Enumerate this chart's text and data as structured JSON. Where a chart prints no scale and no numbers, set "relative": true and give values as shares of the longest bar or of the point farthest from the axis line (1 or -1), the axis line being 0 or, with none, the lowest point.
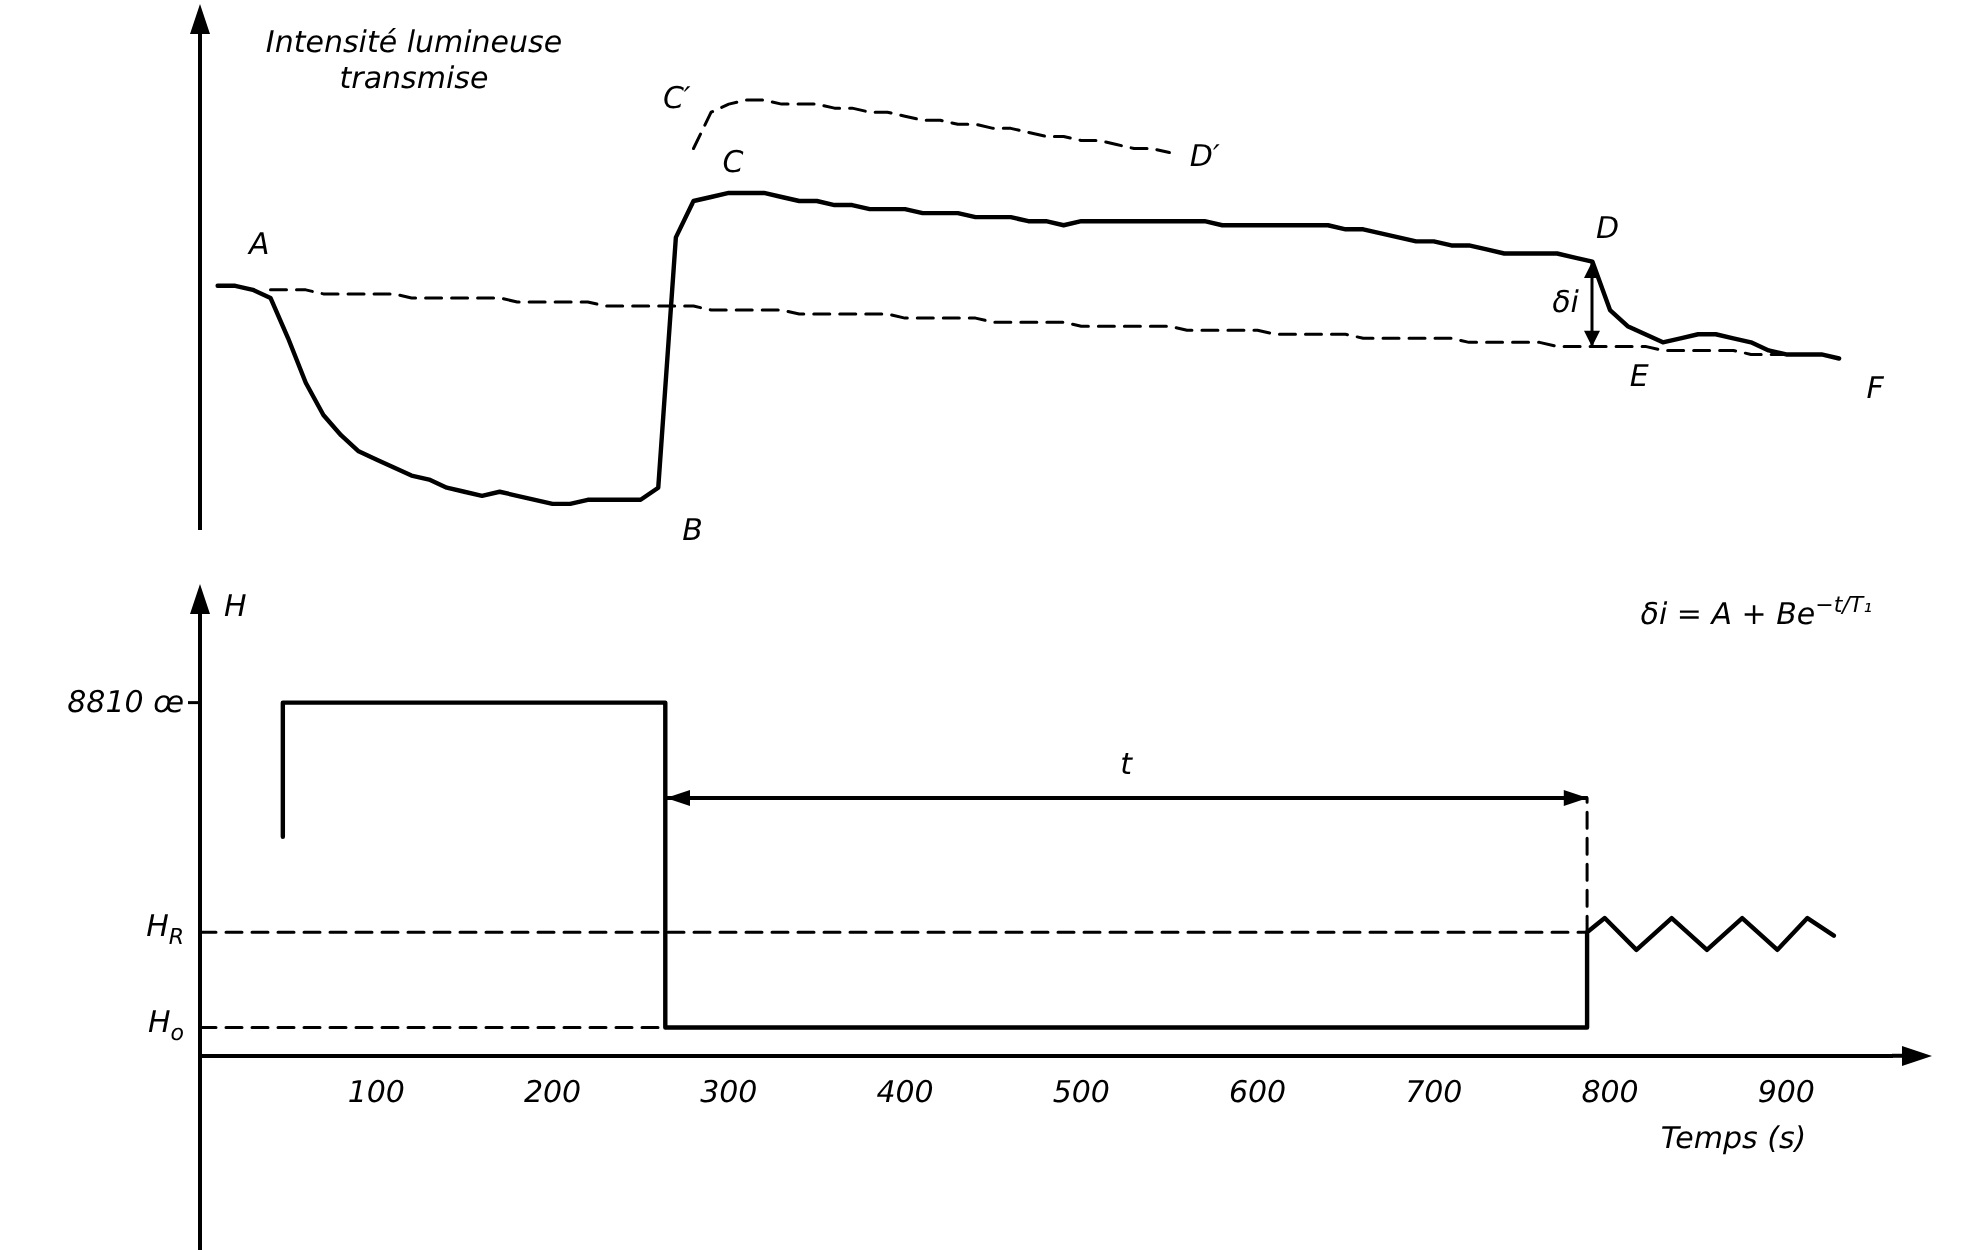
{
  "chart_data": [
    {
      "type": "line",
      "relative": true,
      "ylabel": "Intensité lumineuse transmise",
      "tick_labels": false,
      "grid": false,
      "legend": false,
      "marker": "none",
      "categories": [
        null,
        null,
        null,
        null,
        null,
        null,
        null,
        null,
        null,
        null,
        null,
        null,
        null,
        null,
        null,
        null,
        null,
        null,
        null,
        null,
        null,
        null,
        null,
        null,
        null,
        null,
        null,
        null,
        null,
        null,
        null,
        null,
        null,
        null,
        null,
        null,
        null,
        null,
        null,
        null,
        null,
        null,
        null,
        null,
        null,
        null,
        null,
        null,
        null,
        null,
        null,
        null,
        null,
        null,
        null,
        null,
        null,
        null,
        null,
        null,
        null,
        null,
        null,
        null,
        null,
        null,
        null,
        null,
        null,
        null,
        null,
        null,
        null,
        null,
        null,
        null,
        null,
        null,
        null,
        null,
        null,
        null,
        null,
        null,
        null,
        null,
        null,
        null,
        null,
        null,
        null,
        null,
        null,
        null,
        null,
        null,
        null
      ],
      "series": [
        {
          "color": "#000000",
          "line_style": "solid",
          "values": [
            null,
            0.54,
            0.54,
            0.53,
            0.51,
            0.41,
            0.3,
            0.22,
            0.17,
            0.13,
            0.11,
            0.09,
            0.07,
            0.06,
            0.04,
            0.03,
            0.02,
            0.03,
            0.02,
            0.01,
            0,
            0,
            0.01,
            0.01,
            0.01,
            0.01,
            0.04,
            0.66,
            0.75,
            0.76,
            0.77,
            0.77,
            0.77,
            0.76,
            0.75,
            0.75,
            0.74,
            0.74,
            0.73,
            0.73,
            0.73,
            0.72,
            0.72,
            0.72,
            0.71,
            0.71,
            0.71,
            0.7,
            0.7,
            0.69,
            0.7,
            0.7,
            0.7,
            0.7,
            0.7,
            0.7,
            0.7,
            0.7,
            0.69,
            0.69,
            0.69,
            0.69,
            0.69,
            0.69,
            0.69,
            0.68,
            0.68,
            0.67,
            0.66,
            0.65,
            0.65,
            0.64,
            0.64,
            0.63,
            0.62,
            0.62,
            0.62,
            0.62,
            0.61,
            0.6,
            0.48,
            0.44,
            0.42,
            0.4,
            0.41,
            0.42,
            0.42,
            0.41,
            0.4,
            0.38,
            0.37,
            0.37,
            0.37,
            0.36,
            null,
            null,
            null
          ]
        },
        {
          "color": "#000000",
          "line_style": "dashed",
          "values": [
            null,
            null,
            null,
            null,
            0.53,
            0.53,
            0.53,
            0.52,
            0.52,
            0.52,
            0.52,
            0.52,
            0.51,
            0.51,
            0.51,
            0.51,
            0.51,
            0.51,
            0.5,
            0.5,
            0.5,
            0.5,
            0.5,
            0.49,
            0.49,
            0.49,
            0.49,
            0.49,
            0.49,
            0.48,
            0.48,
            0.48,
            0.48,
            0.48,
            0.47,
            0.47,
            0.47,
            0.47,
            0.47,
            0.47,
            0.46,
            0.46,
            0.46,
            0.46,
            0.46,
            0.45,
            0.45,
            0.45,
            0.45,
            0.45,
            0.44,
            0.44,
            0.44,
            0.44,
            0.44,
            0.44,
            0.43,
            0.43,
            0.43,
            0.43,
            0.43,
            0.42,
            0.42,
            0.42,
            0.42,
            0.42,
            0.41,
            0.41,
            0.41,
            0.41,
            0.41,
            0.41,
            0.4,
            0.4,
            0.4,
            0.4,
            0.4,
            0.39,
            0.39,
            0.39,
            0.39,
            0.39,
            0.39,
            0.38,
            0.38,
            0.38,
            0.38,
            0.38,
            0.37,
            0.37,
            0.37,
            null,
            null,
            null,
            null,
            null,
            null
          ]
        },
        {
          "color": "#000000",
          "line_style": "dashed",
          "values": [
            null,
            null,
            null,
            null,
            null,
            null,
            null,
            null,
            null,
            null,
            null,
            null,
            null,
            null,
            null,
            null,
            null,
            null,
            null,
            null,
            null,
            null,
            null,
            null,
            null,
            null,
            null,
            null,
            0.88,
            0.97,
            0.99,
            1,
            1,
            0.99,
            0.99,
            0.99,
            0.98,
            0.98,
            0.97,
            0.97,
            0.96,
            0.95,
            0.95,
            0.94,
            0.94,
            0.93,
            0.93,
            0.92,
            0.91,
            0.91,
            0.9,
            0.9,
            0.89,
            0.88,
            0.88,
            0.87,
            null,
            null,
            null,
            null,
            null,
            null,
            null,
            null,
            null,
            null,
            null,
            null,
            null,
            null,
            null,
            null,
            null,
            null,
            null,
            null,
            null,
            null,
            null,
            null,
            null,
            null,
            null,
            null,
            null,
            null,
            null,
            null,
            null,
            null,
            null,
            null,
            null,
            null,
            null,
            null,
            null
          ]
        }
      ],
      "annotations": [
        "A",
        "B",
        "C",
        "C′",
        "D′",
        "D",
        "δi",
        "E",
        "F"
      ]
    },
    {
      "type": "line",
      "relative": true,
      "xlabel": "Temps (s)",
      "ylabel": "H",
      "xlim": [
        0,
        960
      ],
      "xticks": [
        100,
        200,
        300,
        400,
        500,
        600,
        700,
        800,
        900
      ],
      "tick_labels": "x",
      "grid": false,
      "legend": false,
      "marker": "none",
      "series": [
        {
          "color": "#000000",
          "line_style": "solid",
          "x": [
            47,
            47,
            264,
            264,
            787,
            787,
            797,
            815,
            835,
            855,
            875,
            895,
            912,
            927
          ],
          "values": [
            0.62,
            1,
            1,
            0.08,
            0.08,
            0.35,
            0.39,
            0.3,
            0.39,
            0.3,
            0.39,
            0.3,
            0.39,
            0.34
          ]
        },
        {
          "color": "#000000",
          "line_style": "dashed",
          "x": [
            0,
            787
          ],
          "values": [
            0.35,
            0.35
          ]
        },
        {
          "color": "#000000",
          "line_style": "dashed",
          "x": [
            0,
            264
          ],
          "values": [
            0.08,
            0.08
          ]
        },
        {
          "color": "#000000",
          "line_style": "dashed",
          "x": [
            787,
            787
          ],
          "values": [
            0.35,
            0.73
          ]
        }
      ],
      "annotations": [
        "8810 œ",
        {
          "text": "H$_{R}$",
          "x": 0,
          "y": 0.35
        },
        {
          "text": "H$_{o}$",
          "x": 0,
          "y": 0.08
        },
        "t",
        "δi = A + Be$^{−t/T₁}$"
      ]
    }
  ]
}
